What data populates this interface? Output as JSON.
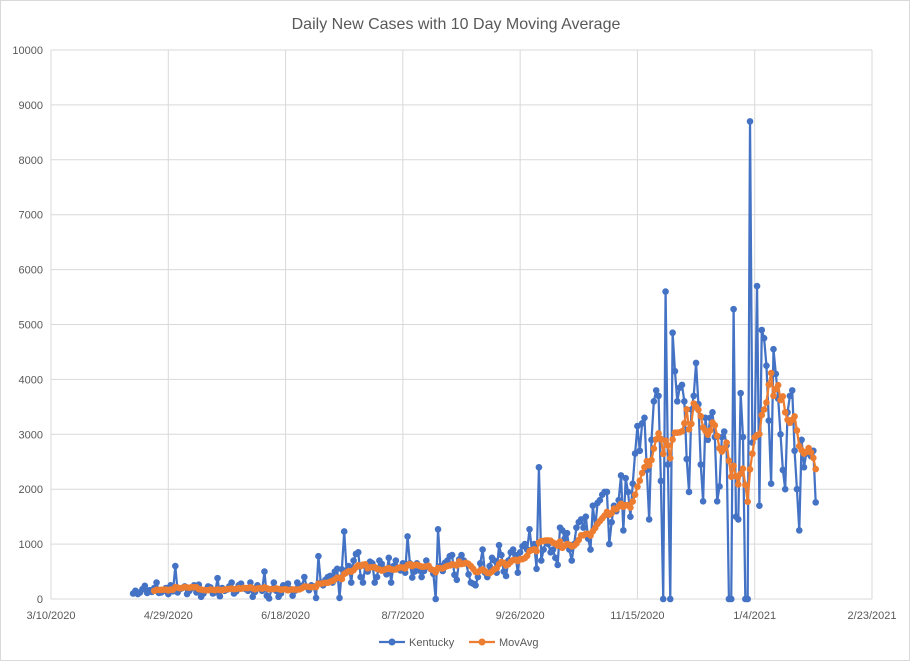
{
  "chart_data": {
    "type": "line",
    "title": "Daily New Cases with 10 Day Moving Average",
    "xlabel": "",
    "ylabel": "",
    "ylim": [
      0,
      10000
    ],
    "y_ticks": [
      "0",
      "1000",
      "2000",
      "3000",
      "4000",
      "5000",
      "6000",
      "7000",
      "8000",
      "9000",
      "10000"
    ],
    "x_ticks": [
      "3/10/2020",
      "4/29/2020",
      "6/18/2020",
      "8/7/2020",
      "9/26/2020",
      "11/15/2020",
      "1/4/2021",
      "2/23/2021"
    ],
    "x_range_days": [
      0,
      350
    ],
    "tick_interval_days": 50,
    "start_day_offset": 35,
    "start_date": "4/14/2020",
    "grid": true,
    "legend_position": "bottom",
    "colors": {
      "Kentucky": "#4472c4",
      "MovAvg": "#ed7d31",
      "grid": "#d9d9d9"
    },
    "series": [
      {
        "name": "Kentucky",
        "values": [
          100,
          150,
          90,
          120,
          180,
          240,
          110,
          160,
          130,
          200,
          300,
          110,
          120,
          150,
          200,
          90,
          250,
          140,
          600,
          120,
          180,
          200,
          230,
          90,
          150,
          200,
          250,
          120,
          260,
          40,
          100,
          170,
          230,
          210,
          100,
          120,
          380,
          50,
          200,
          150,
          170,
          230,
          300,
          100,
          140,
          250,
          280,
          200,
          180,
          150,
          300,
          40,
          130,
          250,
          200,
          150,
          500,
          60,
          10,
          180,
          300,
          150,
          40,
          100,
          250,
          210,
          280,
          180,
          60,
          150,
          300,
          200,
          240,
          400,
          220,
          160,
          250,
          230,
          20,
          780,
          300,
          250,
          350,
          400,
          420,
          300,
          500,
          550,
          20,
          540,
          1230,
          520,
          600,
          300,
          700,
          820,
          850,
          400,
          300,
          600,
          500,
          680,
          650,
          300,
          400,
          700,
          640,
          550,
          450,
          750,
          300,
          600,
          700,
          560,
          520,
          650,
          480,
          1140,
          650,
          390,
          500,
          650,
          520,
          400,
          510,
          700,
          580,
          540,
          460,
          0,
          1270,
          600,
          510,
          660,
          700,
          780,
          800,
          440,
          350,
          720,
          800,
          700,
          650,
          450,
          300,
          280,
          250,
          400,
          650,
          900,
          480,
          400,
          600,
          750,
          700,
          480,
          980,
          800,
          500,
          420,
          700,
          850,
          900,
          800,
          480,
          850,
          960,
          1000,
          900,
          1270,
          900,
          1000,
          550,
          2400,
          700,
          900,
          1050,
          1000,
          850,
          900,
          750,
          620,
          1300,
          1250,
          1100,
          1200,
          900,
          700,
          1000,
          1300,
          1400,
          1450,
          1300,
          1500,
          1100,
          900,
          1700,
          1300,
          1750,
          1800,
          1900,
          1950,
          1950,
          1000,
          1400,
          1700,
          1600,
          1800,
          2250,
          1250,
          2200,
          1950,
          1500,
          2100,
          2650,
          3150,
          2700,
          3200,
          3300,
          2350,
          1450,
          2900,
          3600,
          3800,
          3700,
          2150,
          0,
          5600,
          2450,
          0,
          4850,
          4150,
          3600,
          3850,
          3900,
          3600,
          2550,
          1950,
          3450,
          3700,
          4300,
          3550,
          2450,
          1780,
          3300,
          2900,
          3300,
          3400,
          2950,
          1780,
          2050,
          2950,
          3050,
          2800,
          0,
          0,
          5280,
          1500,
          1450,
          3750,
          2950,
          0,
          0,
          8700,
          2850,
          2950,
          5700,
          1700,
          4900,
          4750,
          4250,
          3250,
          2100,
          4550,
          4100,
          3650,
          3000,
          2350,
          2000,
          3400,
          3700,
          3800,
          2700,
          2000,
          1250,
          2900,
          2400,
          2650,
          2700,
          2600,
          2700,
          1760
        ]
      },
      {
        "name": "MovAvg",
        "window": 10,
        "source": "Kentucky"
      }
    ]
  }
}
